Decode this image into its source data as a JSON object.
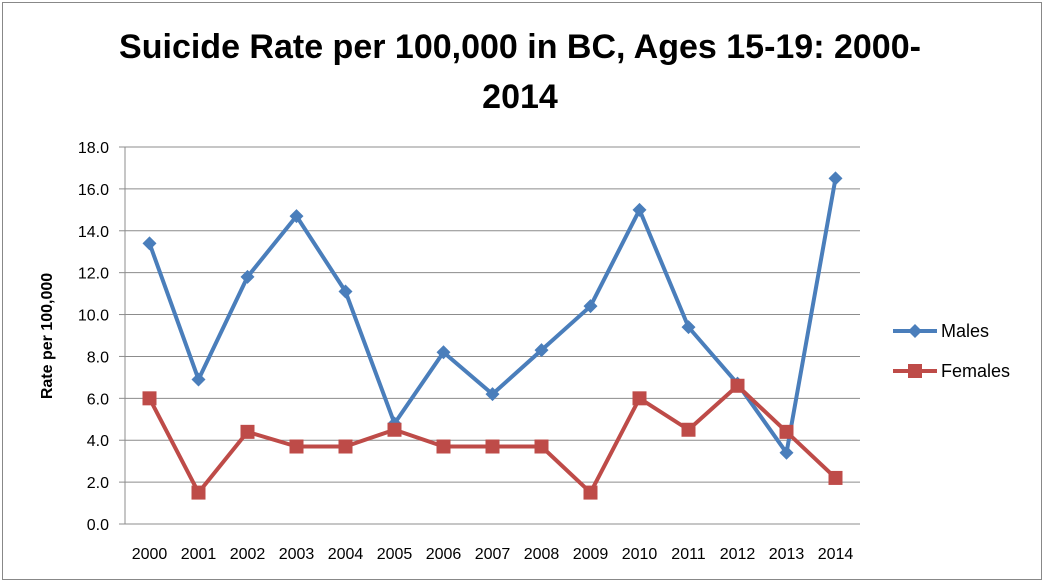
{
  "chart_data": {
    "type": "line",
    "title_line1": "Suicide Rate per 100,000 in BC, Ages 15-19: 2000-",
    "title_line2": "2014",
    "xlabel": "",
    "ylabel": "Rate per 100,000",
    "ylim": [
      0,
      18
    ],
    "yticks": [
      "0.0",
      "2.0",
      "4.0",
      "6.0",
      "8.0",
      "10.0",
      "12.0",
      "14.0",
      "16.0",
      "18.0"
    ],
    "categories": [
      "2000",
      "2001",
      "2002",
      "2003",
      "2004",
      "2005",
      "2006",
      "2007",
      "2008",
      "2009",
      "2010",
      "2011",
      "2012",
      "2013",
      "2014"
    ],
    "grid": true,
    "legend_position": "right",
    "series": [
      {
        "name": "Males",
        "color": "#4a7ebb",
        "marker": "diamond",
        "values": [
          13.4,
          6.9,
          11.8,
          14.7,
          11.1,
          4.8,
          8.2,
          6.2,
          8.3,
          10.4,
          15.0,
          9.4,
          6.7,
          3.4,
          16.5
        ]
      },
      {
        "name": "Females",
        "color": "#be4b48",
        "marker": "square",
        "values": [
          6.0,
          1.5,
          4.4,
          3.7,
          3.7,
          4.5,
          3.7,
          3.7,
          3.7,
          1.5,
          6.0,
          4.5,
          6.6,
          4.4,
          2.2
        ]
      }
    ]
  }
}
